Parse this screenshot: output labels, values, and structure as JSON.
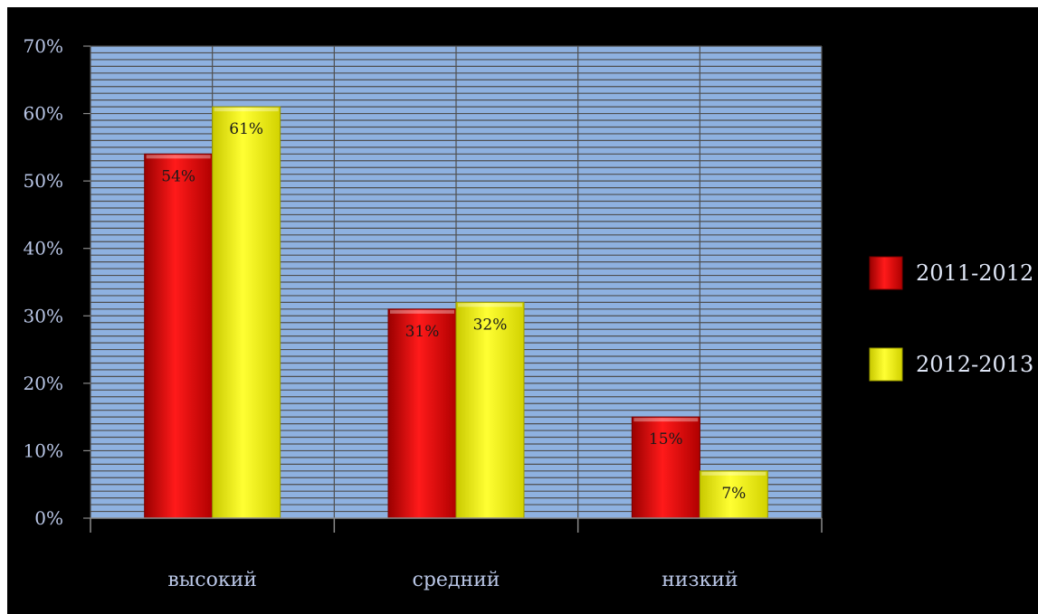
{
  "chart_data": {
    "type": "bar",
    "title": "",
    "xlabel": "",
    "ylabel": "",
    "categories": [
      "высокий",
      "средний",
      "низкий"
    ],
    "series": [
      {
        "name": "2011-2012",
        "values": [
          54,
          31,
          15
        ],
        "labels": [
          "54%",
          "31%",
          "15%"
        ],
        "color": "#d40000"
      },
      {
        "name": "2012-2013",
        "values": [
          61,
          32,
          7
        ],
        "labels": [
          "61%",
          "32%",
          "7%"
        ],
        "color": "#ecec00"
      }
    ],
    "ylim": [
      0,
      70
    ],
    "yticks": [
      0,
      10,
      20,
      30,
      40,
      50,
      60,
      70
    ],
    "ytick_labels": [
      "0%",
      "10%",
      "20%",
      "30%",
      "40%",
      "50%",
      "60%",
      "70%"
    ],
    "grid": true,
    "legend_position": "right",
    "colors": {
      "background": "#000000",
      "plot_area": "#8eb1e0",
      "grid": "#4f4f4f",
      "text": "#b9c6e6"
    }
  }
}
